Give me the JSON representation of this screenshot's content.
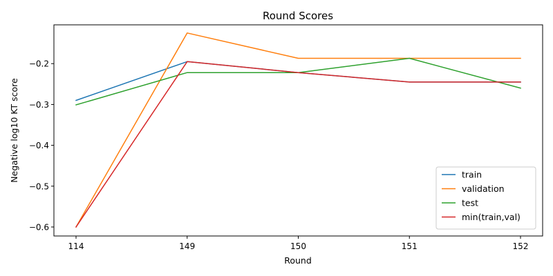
{
  "chart_data": {
    "type": "line",
    "title": "Round Scores",
    "xlabel": "Round",
    "ylabel": "Negative log10 KT score",
    "categories": [
      "114",
      "149",
      "150",
      "151",
      "152"
    ],
    "ylim": [
      -0.622,
      -0.105
    ],
    "yticks": [
      -0.2,
      -0.3,
      -0.4,
      -0.5,
      -0.6
    ],
    "ytick_labels": [
      "−0.2",
      "−0.3",
      "−0.4",
      "−0.5",
      "−0.6"
    ],
    "grid": false,
    "legend_position": "bottom-right",
    "series": [
      {
        "name": "train",
        "color": "#1f77b4",
        "values": [
          -0.29,
          -0.195,
          -0.222,
          -0.245,
          -0.245
        ]
      },
      {
        "name": "validation",
        "color": "#ff7f0e",
        "values": [
          -0.6,
          -0.125,
          -0.187,
          -0.187,
          -0.187
        ]
      },
      {
        "name": "test",
        "color": "#2ca02c",
        "values": [
          -0.301,
          -0.222,
          -0.222,
          -0.187,
          -0.26
        ]
      },
      {
        "name": "min(train,val)",
        "color": "#d62728",
        "values": [
          -0.6,
          -0.195,
          -0.222,
          -0.245,
          -0.245
        ]
      }
    ]
  }
}
